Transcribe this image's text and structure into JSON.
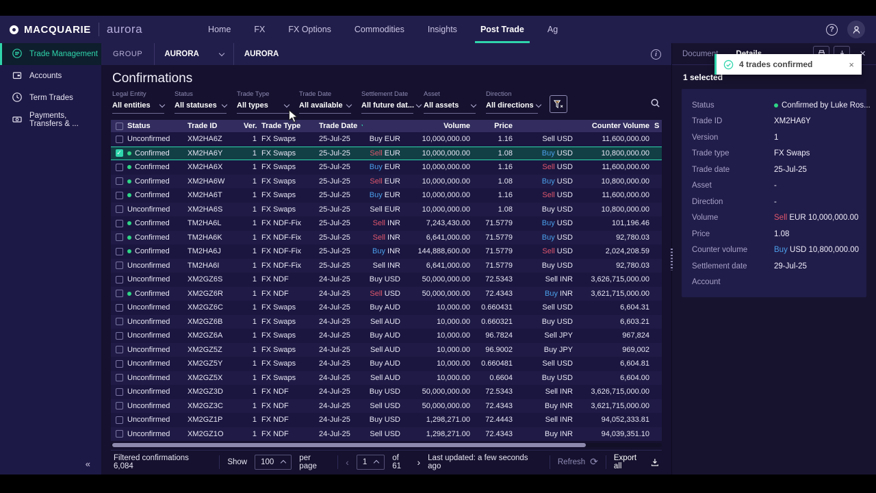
{
  "brand": {
    "name": "MACQUARIE",
    "product": "aurora"
  },
  "topnav": {
    "items": [
      "Home",
      "FX",
      "FX Options",
      "Commodities",
      "Insights",
      "Post Trade",
      "Ag"
    ],
    "active_index": 5
  },
  "sidebar": {
    "items": [
      {
        "label": "Trade Management",
        "icon": "trade-management-icon",
        "active": true
      },
      {
        "label": "Accounts",
        "icon": "accounts-icon",
        "active": false
      },
      {
        "label": "Term Trades",
        "icon": "term-trades-icon",
        "active": false
      },
      {
        "label": "Payments, Transfers & ...",
        "icon": "payments-icon",
        "active": false
      }
    ],
    "collapse_icon": "«"
  },
  "groupbar": {
    "label": "GROUP",
    "selector_value": "AURORA",
    "breadcrumb": "AURORA"
  },
  "page_title": "Confirmations",
  "filters": [
    {
      "label": "Legal Entity",
      "value": "All entities"
    },
    {
      "label": "Status",
      "value": "All statuses"
    },
    {
      "label": "Trade Type",
      "value": "All types"
    },
    {
      "label": "Trade Date",
      "value": "All available"
    },
    {
      "label": "Settlement Date",
      "value": "All future dat..."
    },
    {
      "label": "Asset",
      "value": "All assets"
    },
    {
      "label": "Direction",
      "value": "All directions"
    }
  ],
  "table": {
    "headers": {
      "status": "Status",
      "trade_id": "Trade ID",
      "ver": "Ver.",
      "trade_type": "Trade Type",
      "trade_date": "Trade Date",
      "volume": "Volume",
      "price": "Price",
      "counter_volume": "Counter Volume",
      "partial": "S"
    },
    "sorted_by": "Trade Date",
    "rows": [
      {
        "checked": false,
        "selected": false,
        "confirmed": false,
        "status": "Unconfirmed",
        "trade_id": "XM2HA6Z",
        "ver": "1",
        "trade_type": "FX Swaps",
        "trade_date": "25-Jul-25",
        "dir1": "Buy",
        "cur1": "EUR",
        "volume": "10,000,000.00",
        "price": "1.16",
        "dir2": "Sell",
        "cur2": "USD",
        "counter_volume": "11,600,000.00"
      },
      {
        "checked": true,
        "selected": true,
        "confirmed": true,
        "status": "Confirmed",
        "trade_id": "XM2HA6Y",
        "ver": "1",
        "trade_type": "FX Swaps",
        "trade_date": "25-Jul-25",
        "dir1": "Sell",
        "cur1": "EUR",
        "volume": "10,000,000.00",
        "price": "1.08",
        "dir2": "Buy",
        "cur2": "USD",
        "counter_volume": "10,800,000.00"
      },
      {
        "checked": false,
        "selected": false,
        "confirmed": true,
        "status": "Confirmed",
        "trade_id": "XM2HA6X",
        "ver": "1",
        "trade_type": "FX Swaps",
        "trade_date": "25-Jul-25",
        "dir1": "Buy",
        "cur1": "EUR",
        "volume": "10,000,000.00",
        "price": "1.16",
        "dir2": "Sell",
        "cur2": "USD",
        "counter_volume": "11,600,000.00"
      },
      {
        "checked": false,
        "selected": false,
        "confirmed": true,
        "status": "Confirmed",
        "trade_id": "XM2HA6W",
        "ver": "1",
        "trade_type": "FX Swaps",
        "trade_date": "25-Jul-25",
        "dir1": "Sell",
        "cur1": "EUR",
        "volume": "10,000,000.00",
        "price": "1.08",
        "dir2": "Buy",
        "cur2": "USD",
        "counter_volume": "10,800,000.00"
      },
      {
        "checked": false,
        "selected": false,
        "confirmed": true,
        "status": "Confirmed",
        "trade_id": "XM2HA6T",
        "ver": "1",
        "trade_type": "FX Swaps",
        "trade_date": "25-Jul-25",
        "dir1": "Buy",
        "cur1": "EUR",
        "volume": "10,000,000.00",
        "price": "1.16",
        "dir2": "Sell",
        "cur2": "USD",
        "counter_volume": "11,600,000.00"
      },
      {
        "checked": false,
        "selected": false,
        "confirmed": false,
        "status": "Unconfirmed",
        "trade_id": "XM2HA6S",
        "ver": "1",
        "trade_type": "FX Swaps",
        "trade_date": "25-Jul-25",
        "dir1": "Sell",
        "cur1": "EUR",
        "volume": "10,000,000.00",
        "price": "1.08",
        "dir2": "Buy",
        "cur2": "USD",
        "counter_volume": "10,800,000.00"
      },
      {
        "checked": false,
        "selected": false,
        "confirmed": true,
        "status": "Confirmed",
        "trade_id": "TM2HA6L",
        "ver": "1",
        "trade_type": "FX NDF-Fix",
        "trade_date": "25-Jul-25",
        "dir1": "Sell",
        "cur1": "INR",
        "volume": "7,243,430.00",
        "price": "71.5779",
        "dir2": "Buy",
        "cur2": "USD",
        "counter_volume": "101,196.46"
      },
      {
        "checked": false,
        "selected": false,
        "confirmed": true,
        "status": "Confirmed",
        "trade_id": "TM2HA6K",
        "ver": "1",
        "trade_type": "FX NDF-Fix",
        "trade_date": "25-Jul-25",
        "dir1": "Sell",
        "cur1": "INR",
        "volume": "6,641,000.00",
        "price": "71.5779",
        "dir2": "Buy",
        "cur2": "USD",
        "counter_volume": "92,780.03"
      },
      {
        "checked": false,
        "selected": false,
        "confirmed": true,
        "status": "Confirmed",
        "trade_id": "TM2HA6J",
        "ver": "1",
        "trade_type": "FX NDF-Fix",
        "trade_date": "25-Jul-25",
        "dir1": "Buy",
        "cur1": "INR",
        "volume": "144,888,600.00",
        "price": "71.5779",
        "dir2": "Sell",
        "cur2": "USD",
        "counter_volume": "2,024,208.59"
      },
      {
        "checked": false,
        "selected": false,
        "confirmed": false,
        "status": "Unconfirmed",
        "trade_id": "TM2HA6I",
        "ver": "1",
        "trade_type": "FX NDF-Fix",
        "trade_date": "25-Jul-25",
        "dir1": "Sell",
        "cur1": "INR",
        "volume": "6,641,000.00",
        "price": "71.5779",
        "dir2": "Buy",
        "cur2": "USD",
        "counter_volume": "92,780.03"
      },
      {
        "checked": false,
        "selected": false,
        "confirmed": false,
        "status": "Unconfirmed",
        "trade_id": "XM2GZ6S",
        "ver": "1",
        "trade_type": "FX NDF",
        "trade_date": "24-Jul-25",
        "dir1": "Buy",
        "cur1": "USD",
        "volume": "50,000,000.00",
        "price": "72.5343",
        "dir2": "Sell",
        "cur2": "INR",
        "counter_volume": "3,626,715,000.00"
      },
      {
        "checked": false,
        "selected": false,
        "confirmed": true,
        "status": "Confirmed",
        "trade_id": "XM2GZ6R",
        "ver": "1",
        "trade_type": "FX NDF",
        "trade_date": "24-Jul-25",
        "dir1": "Sell",
        "cur1": "USD",
        "volume": "50,000,000.00",
        "price": "72.4343",
        "dir2": "Buy",
        "cur2": "INR",
        "counter_volume": "3,621,715,000.00"
      },
      {
        "checked": false,
        "selected": false,
        "confirmed": false,
        "status": "Unconfirmed",
        "trade_id": "XM2GZ6C",
        "ver": "1",
        "trade_type": "FX Swaps",
        "trade_date": "24-Jul-25",
        "dir1": "Buy",
        "cur1": "AUD",
        "volume": "10,000.00",
        "price": "0.660431",
        "dir2": "Sell",
        "cur2": "USD",
        "counter_volume": "6,604.31"
      },
      {
        "checked": false,
        "selected": false,
        "confirmed": false,
        "status": "Unconfirmed",
        "trade_id": "XM2GZ6B",
        "ver": "1",
        "trade_type": "FX Swaps",
        "trade_date": "24-Jul-25",
        "dir1": "Sell",
        "cur1": "AUD",
        "volume": "10,000.00",
        "price": "0.660321",
        "dir2": "Buy",
        "cur2": "USD",
        "counter_volume": "6,603.21"
      },
      {
        "checked": false,
        "selected": false,
        "confirmed": false,
        "status": "Unconfirmed",
        "trade_id": "XM2GZ6A",
        "ver": "1",
        "trade_type": "FX Swaps",
        "trade_date": "24-Jul-25",
        "dir1": "Buy",
        "cur1": "AUD",
        "volume": "10,000.00",
        "price": "96.7824",
        "dir2": "Sell",
        "cur2": "JPY",
        "counter_volume": "967,824"
      },
      {
        "checked": false,
        "selected": false,
        "confirmed": false,
        "status": "Unconfirmed",
        "trade_id": "XM2GZ5Z",
        "ver": "1",
        "trade_type": "FX Swaps",
        "trade_date": "24-Jul-25",
        "dir1": "Sell",
        "cur1": "AUD",
        "volume": "10,000.00",
        "price": "96.9002",
        "dir2": "Buy",
        "cur2": "JPY",
        "counter_volume": "969,002"
      },
      {
        "checked": false,
        "selected": false,
        "confirmed": false,
        "status": "Unconfirmed",
        "trade_id": "XM2GZ5Y",
        "ver": "1",
        "trade_type": "FX Swaps",
        "trade_date": "24-Jul-25",
        "dir1": "Buy",
        "cur1": "AUD",
        "volume": "10,000.00",
        "price": "0.660481",
        "dir2": "Sell",
        "cur2": "USD",
        "counter_volume": "6,604.81"
      },
      {
        "checked": false,
        "selected": false,
        "confirmed": false,
        "status": "Unconfirmed",
        "trade_id": "XM2GZ5X",
        "ver": "1",
        "trade_type": "FX Swaps",
        "trade_date": "24-Jul-25",
        "dir1": "Sell",
        "cur1": "AUD",
        "volume": "10,000.00",
        "price": "0.6604",
        "dir2": "Buy",
        "cur2": "USD",
        "counter_volume": "6,604.00"
      },
      {
        "checked": false,
        "selected": false,
        "confirmed": false,
        "status": "Unconfirmed",
        "trade_id": "XM2GZ3D",
        "ver": "1",
        "trade_type": "FX NDF",
        "trade_date": "24-Jul-25",
        "dir1": "Buy",
        "cur1": "USD",
        "volume": "50,000,000.00",
        "price": "72.5343",
        "dir2": "Sell",
        "cur2": "INR",
        "counter_volume": "3,626,715,000.00"
      },
      {
        "checked": false,
        "selected": false,
        "confirmed": false,
        "status": "Unconfirmed",
        "trade_id": "XM2GZ3C",
        "ver": "1",
        "trade_type": "FX NDF",
        "trade_date": "24-Jul-25",
        "dir1": "Sell",
        "cur1": "USD",
        "volume": "50,000,000.00",
        "price": "72.4343",
        "dir2": "Buy",
        "cur2": "INR",
        "counter_volume": "3,621,715,000.00"
      },
      {
        "checked": false,
        "selected": false,
        "confirmed": false,
        "status": "Unconfirmed",
        "trade_id": "XM2GZ1P",
        "ver": "1",
        "trade_type": "FX NDF",
        "trade_date": "24-Jul-25",
        "dir1": "Buy",
        "cur1": "USD",
        "volume": "1,298,271.00",
        "price": "72.4443",
        "dir2": "Sell",
        "cur2": "INR",
        "counter_volume": "94,052,333.81"
      },
      {
        "checked": false,
        "selected": false,
        "confirmed": false,
        "status": "Unconfirmed",
        "trade_id": "XM2GZ1O",
        "ver": "1",
        "trade_type": "FX NDF",
        "trade_date": "24-Jul-25",
        "dir1": "Sell",
        "cur1": "USD",
        "volume": "1,298,271.00",
        "price": "72.4343",
        "dir2": "Buy",
        "cur2": "INR",
        "counter_volume": "94,039,351.10"
      }
    ]
  },
  "pagination": {
    "filtered_label": "Filtered confirmations",
    "filtered_count": "6,084",
    "show_label": "Show",
    "page_size": "100",
    "per_page_label": "per page",
    "prev_icon": "‹",
    "page": "1",
    "of_label": "of 61",
    "next_icon": "›",
    "last_updated": "Last updated: a few seconds ago",
    "refresh_label": "Refresh",
    "refresh_icon": "⟳",
    "export_label": "Export all"
  },
  "details_panel": {
    "tabs": [
      "Document",
      "Details"
    ],
    "active_tab": "Details",
    "selected_label": "1 selected",
    "fields": [
      {
        "label": "Status",
        "value": "Confirmed by Luke Ros...",
        "dot": true
      },
      {
        "label": "Trade ID",
        "value": "XM2HA6Y"
      },
      {
        "label": "Version",
        "value": "1"
      },
      {
        "label": "Trade type",
        "value": "FX Swaps"
      },
      {
        "label": "Trade date",
        "value": "25-Jul-25"
      },
      {
        "label": "Asset",
        "value": "-"
      },
      {
        "label": "Direction",
        "value": "-"
      },
      {
        "label": "Volume",
        "value": "EUR 10,000,000.00",
        "direction": "Sell"
      },
      {
        "label": "Price",
        "value": "1.08"
      },
      {
        "label": "Counter volume",
        "value": "USD 10,800,000.00",
        "direction": "Buy"
      },
      {
        "label": "Settlement date",
        "value": "29-Jul-25"
      },
      {
        "label": "Account",
        "value": ""
      }
    ]
  },
  "toast": {
    "message": "4 trades confirmed",
    "close_icon": "×"
  },
  "colors": {
    "accent_teal": "#2fd5ac",
    "confirmed_green": "#2fd586",
    "buy_blue": "#4b9fea",
    "sell_red": "#e0566c",
    "nav_bg": "#221e4b",
    "toast_bg": "#ffffff"
  }
}
